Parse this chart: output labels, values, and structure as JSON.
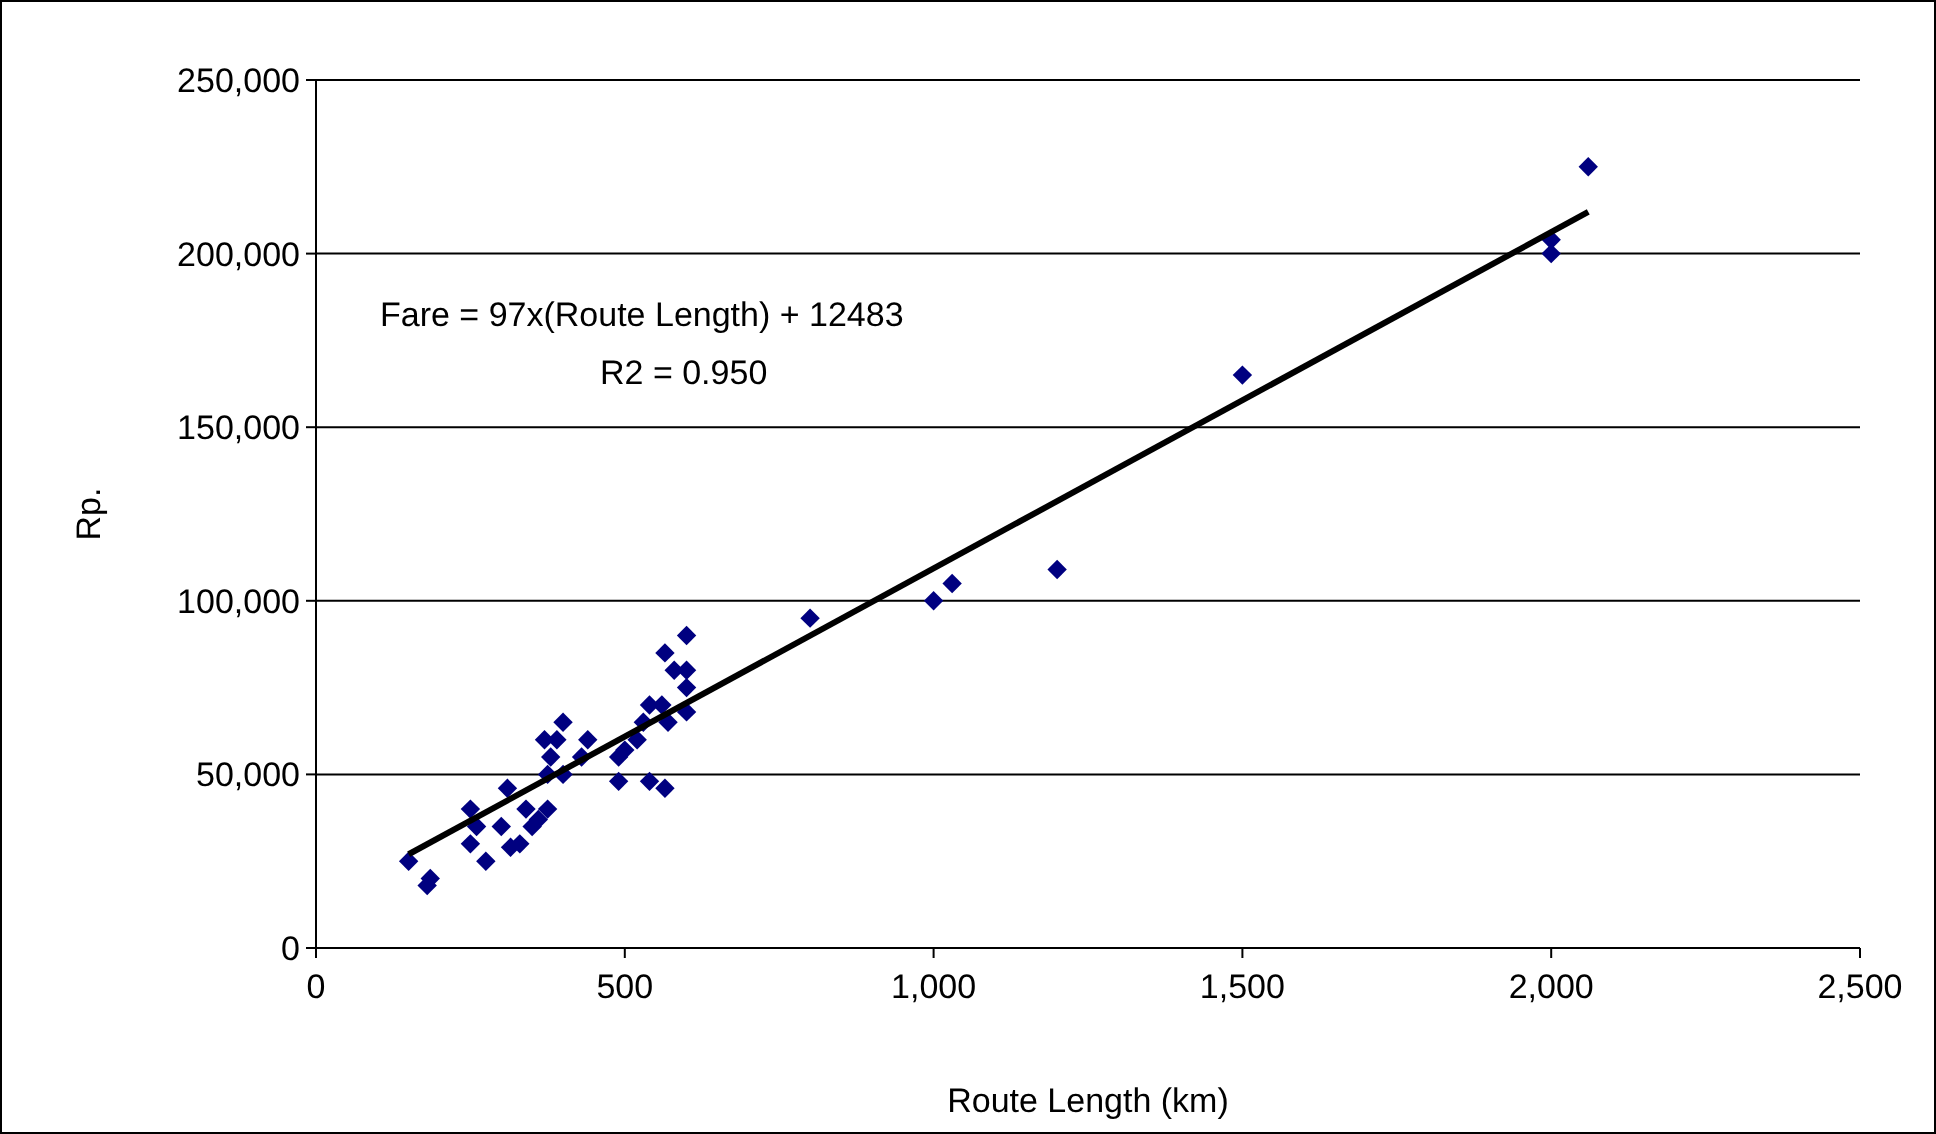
{
  "chart_data": {
    "type": "scatter",
    "xlabel": "Route Length (km)",
    "ylabel": "Rp.",
    "xlim": [
      0,
      2500
    ],
    "ylim": [
      0,
      250000
    ],
    "xticks": [
      0,
      500,
      {
        "value": 1000,
        "label": "1,000"
      },
      {
        "value": 1500,
        "label": "1,500"
      },
      {
        "value": 2000,
        "label": "2,000"
      },
      {
        "value": 2500,
        "label": "2,500"
      }
    ],
    "yticks": [
      0,
      {
        "value": 50000,
        "label": "50,000"
      },
      {
        "value": 100000,
        "label": "100,000"
      },
      {
        "value": 150000,
        "label": "150,000"
      },
      {
        "value": 200000,
        "label": "200,000"
      },
      {
        "value": 250000,
        "label": "250,000"
      }
    ],
    "grid": "y",
    "marker": "diamond",
    "series": [
      {
        "color": "#000080",
        "x": [
          150,
          180,
          185,
          250,
          250,
          260,
          275,
          300,
          310,
          315,
          330,
          340,
          350,
          360,
          370,
          375,
          375,
          380,
          390,
          400,
          400,
          430,
          440,
          490,
          490,
          500,
          520,
          530,
          540,
          540,
          560,
          565,
          565,
          570,
          580,
          600,
          600,
          600,
          600,
          800,
          1000,
          1030,
          1200,
          1500,
          2000,
          2000,
          2060
        ],
        "values": [
          25000,
          18000,
          20000,
          40000,
          30000,
          35000,
          25000,
          35000,
          46000,
          29000,
          30000,
          40000,
          35000,
          37000,
          60000,
          40000,
          50000,
          55000,
          60000,
          65000,
          50000,
          55000,
          60000,
          48000,
          55000,
          57000,
          60000,
          65000,
          70000,
          48000,
          70000,
          46000,
          85000,
          65000,
          80000,
          90000,
          75000,
          80000,
          68000,
          95000,
          100000,
          105000,
          109000,
          165000,
          200000,
          204000,
          225000
        ]
      },
      {
        "type": "line",
        "color": "#000000",
        "marker": "none",
        "line_style": "solid",
        "x": [
          150,
          2060
        ],
        "values": [
          27000,
          212000
        ]
      }
    ],
    "annotations": [
      "Fare = 97x(Route Length) + 12483",
      "R2 = 0.950"
    ]
  }
}
